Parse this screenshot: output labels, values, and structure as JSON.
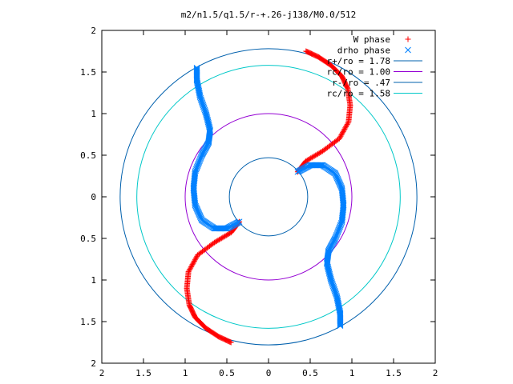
{
  "chart_data": {
    "type": "scatter",
    "title": "m2/n1.5/q1.5/r-+.26-j138/M0.0/512",
    "xlabel": "",
    "ylabel": "",
    "xlim": [
      -2,
      2
    ],
    "ylim": [
      -2,
      2
    ],
    "x_ticks": [
      {
        "value": -2,
        "label": "2"
      },
      {
        "value": -1.5,
        "label": "1.5"
      },
      {
        "value": -1,
        "label": "1"
      },
      {
        "value": -0.5,
        "label": "0.5"
      },
      {
        "value": 0,
        "label": "0"
      },
      {
        "value": 0.5,
        "label": "0.5"
      },
      {
        "value": 1,
        "label": "1"
      },
      {
        "value": 1.5,
        "label": "1.5"
      },
      {
        "value": 2,
        "label": "2"
      }
    ],
    "y_ticks": [
      {
        "value": 2,
        "label": "2"
      },
      {
        "value": 1.5,
        "label": "1.5"
      },
      {
        "value": 1,
        "label": "1"
      },
      {
        "value": 0.5,
        "label": "0.5"
      },
      {
        "value": 0,
        "label": "0"
      },
      {
        "value": -0.5,
        "label": "0.5"
      },
      {
        "value": -1,
        "label": "1"
      },
      {
        "value": -1.5,
        "label": "1.5"
      },
      {
        "value": -2,
        "label": "2"
      }
    ],
    "grid": false,
    "legend_position": "top-right",
    "series": [
      {
        "name": "W phase",
        "kind": "points",
        "marker": "plus",
        "color": "#ff0000",
        "arms": [
          {
            "x": [
              0.45,
              0.6,
              0.75,
              0.88,
              0.95,
              0.98,
              0.96,
              0.85,
              0.65,
              0.45,
              0.35
            ],
            "y": [
              1.75,
              1.68,
              1.58,
              1.45,
              1.3,
              1.1,
              0.9,
              0.7,
              0.55,
              0.43,
              0.3
            ]
          },
          {
            "x": [
              -0.45,
              -0.6,
              -0.75,
              -0.88,
              -0.95,
              -0.98,
              -0.96,
              -0.85,
              -0.65,
              -0.45,
              -0.35
            ],
            "y": [
              -1.75,
              -1.68,
              -1.58,
              -1.45,
              -1.3,
              -1.1,
              -0.9,
              -0.7,
              -0.55,
              -0.43,
              -0.3
            ]
          }
        ]
      },
      {
        "name": "drho phase",
        "kind": "points",
        "marker": "cross",
        "color": "#0080ff",
        "arms": [
          {
            "x": [
              0.35,
              0.5,
              0.65,
              0.8,
              0.88,
              0.9,
              0.88,
              0.8,
              0.72,
              0.7,
              0.75,
              0.82,
              0.86,
              0.86
            ],
            "y": [
              0.3,
              0.38,
              0.38,
              0.28,
              0.1,
              -0.1,
              -0.3,
              -0.5,
              -0.65,
              -0.8,
              -1.0,
              -1.2,
              -1.4,
              -1.55
            ]
          },
          {
            "x": [
              -0.35,
              -0.5,
              -0.65,
              -0.8,
              -0.88,
              -0.9,
              -0.88,
              -0.8,
              -0.72,
              -0.7,
              -0.75,
              -0.82,
              -0.86,
              -0.86
            ],
            "y": [
              -0.3,
              -0.38,
              -0.38,
              -0.28,
              -0.1,
              0.1,
              0.3,
              0.5,
              0.65,
              0.8,
              1.0,
              1.2,
              1.4,
              1.55
            ]
          }
        ]
      },
      {
        "name": "r+/ro = 1.78",
        "kind": "circle",
        "radius": 1.78,
        "color": "#0060ad"
      },
      {
        "name": "rc/ro = 1.00",
        "kind": "circle",
        "radius": 1.0,
        "color": "#9400d3"
      },
      {
        "name": "r-/ro = .47",
        "kind": "circle",
        "radius": 0.47,
        "color": "#0060ad"
      },
      {
        "name": "rc/ro = 1.58",
        "kind": "circle",
        "radius": 1.58,
        "color": "#00c8c8"
      }
    ]
  }
}
